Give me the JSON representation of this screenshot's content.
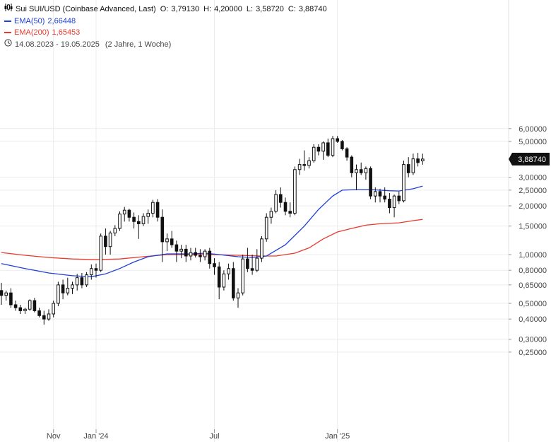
{
  "header": {
    "title": "Sui SUI/USD (Coinbase Advanced, Last)",
    "ohlc": [
      {
        "key": "O:",
        "value": "3,79130"
      },
      {
        "key": "H:",
        "value": "4,20000"
      },
      {
        "key": "L:",
        "value": "3,58720"
      },
      {
        "key": "C:",
        "value": "3,88740"
      }
    ],
    "ema50": {
      "label": "EMA(50)",
      "value": "2,66448",
      "color": "#1f3fd6"
    },
    "ema200": {
      "label": "EMA(200)",
      "value": "1,65453",
      "color": "#e8392f"
    },
    "range": {
      "dates": "14.08.2023 - 19.05.2025",
      "span": "(2 Jahre, 1 Woche)"
    }
  },
  "chart_data": {
    "type": "candlestick",
    "title": "Sui SUI/USD (Coinbase Advanced, Last)",
    "interval": "weekly",
    "y_scale": "log",
    "ylim": [
      0.24,
      6.9
    ],
    "grid": true,
    "yticks": [
      {
        "v": 6,
        "label": "6,00000"
      },
      {
        "v": 5,
        "label": "5,00000"
      },
      {
        "v": 3,
        "label": "3,00000"
      },
      {
        "v": 2.5,
        "label": "2,50000"
      },
      {
        "v": 2,
        "label": "2,00000"
      },
      {
        "v": 1.5,
        "label": "1,50000"
      },
      {
        "v": 1,
        "label": "1,00000"
      },
      {
        "v": 0.8,
        "label": "0,80000"
      },
      {
        "v": 0.65,
        "label": "0,65000"
      },
      {
        "v": 0.5,
        "label": "0,50000"
      },
      {
        "v": 0.4,
        "label": "0,40000"
      },
      {
        "v": 0.3,
        "label": "0,30000"
      },
      {
        "v": 0.25,
        "label": "0,25000"
      }
    ],
    "xticks": [
      {
        "i": 11,
        "label": "Nov"
      },
      {
        "i": 20,
        "label": "Jan '24"
      },
      {
        "i": 45,
        "label": "Jul"
      },
      {
        "i": 71,
        "label": "Jan '25"
      }
    ],
    "last_price": {
      "v": 3.8874,
      "label": "3,88740"
    },
    "candles": [
      [
        0.6,
        0.67,
        0.49,
        0.56
      ],
      [
        0.56,
        0.6,
        0.52,
        0.58
      ],
      [
        0.58,
        0.62,
        0.47,
        0.49
      ],
      [
        0.49,
        0.52,
        0.45,
        0.47
      ],
      [
        0.47,
        0.49,
        0.43,
        0.45
      ],
      [
        0.45,
        0.47,
        0.43,
        0.46
      ],
      [
        0.46,
        0.53,
        0.45,
        0.52
      ],
      [
        0.52,
        0.54,
        0.44,
        0.45
      ],
      [
        0.45,
        0.47,
        0.41,
        0.42
      ],
      [
        0.42,
        0.45,
        0.37,
        0.4
      ],
      [
        0.4,
        0.46,
        0.39,
        0.43
      ],
      [
        0.43,
        0.52,
        0.41,
        0.5
      ],
      [
        0.5,
        0.68,
        0.48,
        0.65
      ],
      [
        0.65,
        0.7,
        0.53,
        0.58
      ],
      [
        0.58,
        0.72,
        0.56,
        0.62
      ],
      [
        0.62,
        0.68,
        0.57,
        0.65
      ],
      [
        0.65,
        0.76,
        0.6,
        0.72
      ],
      [
        0.72,
        0.77,
        0.62,
        0.65
      ],
      [
        0.65,
        0.78,
        0.63,
        0.75
      ],
      [
        0.75,
        0.87,
        0.7,
        0.82
      ],
      [
        0.82,
        0.88,
        0.72,
        0.8
      ],
      [
        0.8,
        1.35,
        0.78,
        1.3
      ],
      [
        1.3,
        1.45,
        1.0,
        1.12
      ],
      [
        1.12,
        1.4,
        1.0,
        1.36
      ],
      [
        1.36,
        1.52,
        1.3,
        1.45
      ],
      [
        1.45,
        1.85,
        1.4,
        1.78
      ],
      [
        1.78,
        1.97,
        1.6,
        1.88
      ],
      [
        1.88,
        1.92,
        1.6,
        1.7
      ],
      [
        1.7,
        1.82,
        1.45,
        1.6
      ],
      [
        1.6,
        1.75,
        1.25,
        1.55
      ],
      [
        1.55,
        1.8,
        1.5,
        1.72
      ],
      [
        1.72,
        1.9,
        1.55,
        1.8
      ],
      [
        1.8,
        2.18,
        1.7,
        2.1
      ],
      [
        2.1,
        2.2,
        1.6,
        1.7
      ],
      [
        1.7,
        1.9,
        0.9,
        1.2
      ],
      [
        1.2,
        1.35,
        1.05,
        1.25
      ],
      [
        1.25,
        1.4,
        1.1,
        1.15
      ],
      [
        1.15,
        1.22,
        0.9,
        1.05
      ],
      [
        1.05,
        1.15,
        0.95,
        1.08
      ],
      [
        1.08,
        1.15,
        0.9,
        0.98
      ],
      [
        0.98,
        1.1,
        0.92,
        1.03
      ],
      [
        1.03,
        1.1,
        0.96,
        0.99
      ],
      [
        0.99,
        1.08,
        0.9,
        0.97
      ],
      [
        0.97,
        1.08,
        0.92,
        1.05
      ],
      [
        1.05,
        1.1,
        0.82,
        0.88
      ],
      [
        0.88,
        0.95,
        0.75,
        0.84
      ],
      [
        0.84,
        0.9,
        0.53,
        0.63
      ],
      [
        0.63,
        0.8,
        0.6,
        0.76
      ],
      [
        0.76,
        0.88,
        0.7,
        0.82
      ],
      [
        0.82,
        0.9,
        0.52,
        0.54
      ],
      [
        0.54,
        0.62,
        0.47,
        0.58
      ],
      [
        0.58,
        1.0,
        0.56,
        0.94
      ],
      [
        0.94,
        1.1,
        0.78,
        0.82
      ],
      [
        0.82,
        1.0,
        0.75,
        0.8
      ],
      [
        0.8,
        1.08,
        0.78,
        0.95
      ],
      [
        0.95,
        1.3,
        0.9,
        1.25
      ],
      [
        1.25,
        1.8,
        1.2,
        1.7
      ],
      [
        1.7,
        1.95,
        1.55,
        1.85
      ],
      [
        1.85,
        2.5,
        1.8,
        2.35
      ],
      [
        2.35,
        2.6,
        1.95,
        2.1
      ],
      [
        2.1,
        2.25,
        1.75,
        1.85
      ],
      [
        1.85,
        2.1,
        1.7,
        1.8
      ],
      [
        1.8,
        3.5,
        1.75,
        3.35
      ],
      [
        3.35,
        3.9,
        3.1,
        3.6
      ],
      [
        3.6,
        4.4,
        3.3,
        3.55
      ],
      [
        3.55,
        4.0,
        3.4,
        3.8
      ],
      [
        3.8,
        4.8,
        3.7,
        4.6
      ],
      [
        4.6,
        4.8,
        4.1,
        4.35
      ],
      [
        4.35,
        5.0,
        3.85,
        4.9
      ],
      [
        4.9,
        5.2,
        4.0,
        4.1
      ],
      [
        4.1,
        5.4,
        4.0,
        5.2
      ],
      [
        5.2,
        5.4,
        4.9,
        5.0
      ],
      [
        5.0,
        5.1,
        4.4,
        4.5
      ],
      [
        4.5,
        4.6,
        3.8,
        4.0
      ],
      [
        4.0,
        4.1,
        3.0,
        3.2
      ],
      [
        3.2,
        3.6,
        2.5,
        3.35
      ],
      [
        3.35,
        3.7,
        3.1,
        3.2
      ],
      [
        3.2,
        3.5,
        2.9,
        3.4
      ],
      [
        3.4,
        3.5,
        2.2,
        2.3
      ],
      [
        2.3,
        2.6,
        2.1,
        2.45
      ],
      [
        2.45,
        2.55,
        2.1,
        2.3
      ],
      [
        2.3,
        2.6,
        2.1,
        2.2
      ],
      [
        2.2,
        2.4,
        1.8,
        1.95
      ],
      [
        1.95,
        2.35,
        1.7,
        2.3
      ],
      [
        2.3,
        2.45,
        2.05,
        2.15
      ],
      [
        2.15,
        3.8,
        2.1,
        3.6
      ],
      [
        3.6,
        4.0,
        3.0,
        3.2
      ],
      [
        3.2,
        4.2,
        3.1,
        3.9
      ],
      [
        3.9,
        4.25,
        3.5,
        3.7
      ],
      [
        3.79,
        4.2,
        3.59,
        3.89
      ]
    ],
    "series": [
      {
        "name": "EMA(50)",
        "color": "#1f3fd6",
        "points": [
          [
            0,
            0.88
          ],
          [
            5,
            0.82
          ],
          [
            10,
            0.77
          ],
          [
            15,
            0.74
          ],
          [
            19,
            0.73
          ],
          [
            22,
            0.76
          ],
          [
            25,
            0.82
          ],
          [
            28,
            0.9
          ],
          [
            31,
            0.97
          ],
          [
            35,
            1.01
          ],
          [
            40,
            1.01
          ],
          [
            43,
            1.02
          ],
          [
            46,
            1.0
          ],
          [
            50,
            0.97
          ],
          [
            53,
            0.96
          ],
          [
            56,
            0.98
          ],
          [
            60,
            1.15
          ],
          [
            64,
            1.5
          ],
          [
            67,
            1.9
          ],
          [
            70,
            2.3
          ],
          [
            72,
            2.5
          ],
          [
            75,
            2.52
          ],
          [
            78,
            2.52
          ],
          [
            82,
            2.48
          ],
          [
            84,
            2.47
          ],
          [
            87,
            2.55
          ],
          [
            89,
            2.65
          ]
        ]
      },
      {
        "name": "EMA(200)",
        "color": "#e8392f",
        "points": [
          [
            0,
            1.03
          ],
          [
            5,
            0.99
          ],
          [
            10,
            0.96
          ],
          [
            15,
            0.94
          ],
          [
            20,
            0.93
          ],
          [
            25,
            0.94
          ],
          [
            30,
            0.97
          ],
          [
            35,
            1.0
          ],
          [
            40,
            1.0
          ],
          [
            45,
            1.0
          ],
          [
            50,
            0.99
          ],
          [
            55,
            0.98
          ],
          [
            58,
            0.98
          ],
          [
            62,
            1.02
          ],
          [
            65,
            1.1
          ],
          [
            68,
            1.25
          ],
          [
            71,
            1.38
          ],
          [
            74,
            1.45
          ],
          [
            77,
            1.52
          ],
          [
            80,
            1.55
          ],
          [
            84,
            1.57
          ],
          [
            87,
            1.62
          ],
          [
            89,
            1.65
          ]
        ]
      }
    ]
  }
}
